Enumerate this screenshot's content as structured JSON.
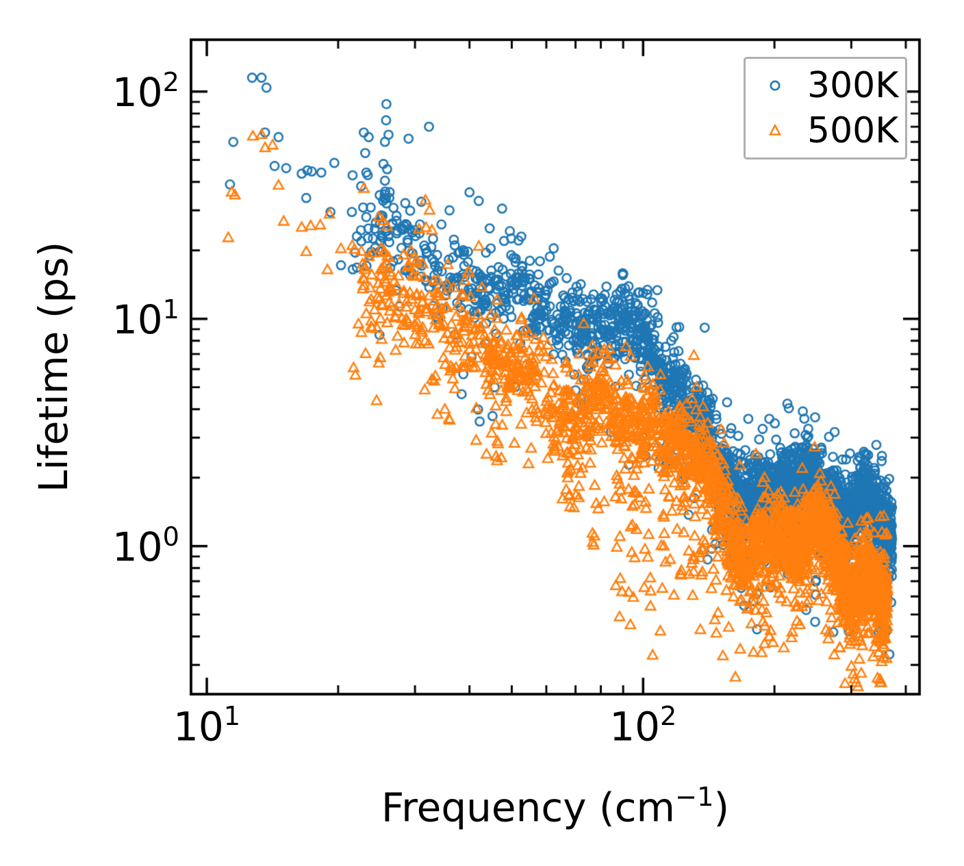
{
  "figure": {
    "ylabel_text": "Lifetime (ps)",
    "xlabel": {
      "pre": "Frequency (cm",
      "sup": "−1",
      "post": ")"
    },
    "x_tick_labels": [
      {
        "base": "10",
        "exp": "1"
      },
      {
        "base": "10",
        "exp": "2"
      }
    ],
    "y_tick_labels": [
      {
        "base": "10",
        "exp": "2"
      },
      {
        "base": "10",
        "exp": "1"
      },
      {
        "base": "10",
        "exp": "0"
      }
    ],
    "legend": {
      "entries": [
        {
          "label": "300K"
        },
        {
          "label": "500K"
        }
      ]
    },
    "background_color": "#ffffff",
    "axis_color": "#000000",
    "legend_border_color": "#b0b0b0"
  },
  "chart_data": {
    "type": "scatter",
    "title": "",
    "xlabel": "Frequency (cm⁻¹)",
    "ylabel": "Lifetime (ps)",
    "xscale": "log",
    "yscale": "log",
    "xlim": [
      9.2,
      430
    ],
    "ylim": [
      0.223,
      169
    ],
    "x_major_ticks": [
      10,
      100
    ],
    "y_major_ticks": [
      100,
      10,
      1
    ],
    "grid": false,
    "legend_position": "upper right",
    "series": [
      {
        "name": "300K",
        "color": "#1f77b4",
        "marker": "circle",
        "sparse_points": [
          [
            11.5,
            60
          ],
          [
            11.3,
            39
          ],
          [
            12.7,
            115
          ],
          [
            13.35,
            115
          ],
          [
            13.7,
            104
          ],
          [
            13.6,
            66
          ],
          [
            14.6,
            63
          ],
          [
            14.3,
            47
          ],
          [
            15.2,
            46
          ],
          [
            16.5,
            43.5
          ],
          [
            17.0,
            45
          ],
          [
            17.4,
            44.5
          ],
          [
            18.3,
            44
          ],
          [
            19.6,
            48.5
          ],
          [
            16.9,
            34
          ],
          [
            19.2,
            29.5
          ],
          [
            20.3,
            17.2
          ],
          [
            21.6,
            16.5
          ],
          [
            21.5,
            29.5
          ],
          [
            22.9,
            66
          ],
          [
            23.5,
            63
          ],
          [
            23.2,
            44
          ],
          [
            23.6,
            19
          ],
          [
            24.3,
            20.5
          ],
          [
            25.0,
            22
          ],
          [
            25.8,
            88
          ],
          [
            25.4,
            48
          ],
          [
            25.9,
            45.5
          ],
          [
            25.6,
            40.5
          ],
          [
            24.9,
            35
          ],
          [
            26.2,
            34
          ],
          [
            29.0,
            62
          ],
          [
            32.3,
            70
          ],
          [
            32.7,
            20.7
          ],
          [
            27.2,
            27
          ],
          [
            28.4,
            25.5
          ],
          [
            29.6,
            24
          ],
          [
            30.8,
            26
          ],
          [
            31.5,
            21
          ],
          [
            33.0,
            22.5
          ],
          [
            34.5,
            26
          ],
          [
            36.0,
            30
          ],
          [
            40.0,
            36
          ],
          [
            42.0,
            33
          ],
          [
            44.5,
            25
          ],
          [
            49.5,
            24.3
          ],
          [
            48.0,
            22
          ],
          [
            55.0,
            18
          ],
          [
            64.0,
            16.3
          ],
          [
            66.8,
            15.1
          ],
          [
            77.0,
            12.8
          ],
          [
            87.0,
            12.8
          ],
          [
            97.0,
            11.5
          ],
          [
            100,
            13
          ],
          [
            121,
            9.2
          ]
        ],
        "columns": [
          [
            25.6,
            26,
            88,
            7
          ],
          [
            23.1,
            17,
            67,
            5
          ],
          [
            118,
            2.4,
            4.0,
            5
          ],
          [
            154,
            0.95,
            2.2,
            8
          ],
          [
            162,
            0.8,
            1.8,
            6
          ],
          [
            170,
            0.85,
            1.6,
            5
          ],
          [
            216,
            1.4,
            2.0,
            6
          ]
        ],
        "band": {
          "n": 2600,
          "seed": 42,
          "f_min": 21.5,
          "f_max": 372,
          "anchors_f": [
            22,
            26,
            30,
            36,
            43,
            52,
            62,
            75,
            88,
            96,
            105,
            115,
            125,
            135,
            145,
            155,
            165,
            175,
            190,
            210,
            230,
            250,
            270,
            290,
            305,
            320,
            340,
            356,
            372
          ],
          "anchors_median": [
            27,
            23,
            19,
            15.5,
            13.5,
            12,
            11,
            10,
            9,
            7.6,
            6.3,
            5.3,
            4.5,
            3.8,
            3,
            2.2,
            1.65,
            1.4,
            1.6,
            1.85,
            2.05,
            1.95,
            1.75,
            1.5,
            1.55,
            1.65,
            1.4,
            1.15,
            1.0
          ],
          "anchors_halfwidth": [
            0.17,
            0.16,
            0.15,
            0.14,
            0.13,
            0.13,
            0.13,
            0.13,
            0.13,
            0.13,
            0.13,
            0.13,
            0.13,
            0.14,
            0.15,
            0.16,
            0.15,
            0.14,
            0.13,
            0.13,
            0.13,
            0.12,
            0.12,
            0.12,
            0.12,
            0.12,
            0.12,
            0.12,
            0.12
          ],
          "tail_frac": 0.09,
          "tail_depth": 0.5,
          "up_frac": 0.04,
          "up_depth": 0.3,
          "wiggle_amps": [
            0.045,
            0.03,
            0.025
          ],
          "wiggle_freqs": [
            21,
            47,
            104
          ]
        }
      },
      {
        "name": "500K",
        "color": "#ff7f0e",
        "marker": "triangle",
        "sparse_points": [
          [
            11.4,
            36
          ],
          [
            11.2,
            22.7
          ],
          [
            11.6,
            35
          ],
          [
            12.75,
            63.5
          ],
          [
            13.35,
            64.5
          ],
          [
            13.6,
            56.5
          ],
          [
            14.15,
            58
          ],
          [
            14.6,
            38.6
          ],
          [
            15.0,
            26.8
          ],
          [
            16.5,
            25.2
          ],
          [
            17.3,
            25.6
          ],
          [
            18.2,
            25.8
          ],
          [
            19.1,
            28.8
          ],
          [
            16.9,
            19.7
          ],
          [
            18.9,
            16.4
          ],
          [
            20.3,
            20.3
          ],
          [
            22.9,
            37.4
          ],
          [
            23.2,
            10.5
          ],
          [
            23.8,
            9.2
          ],
          [
            24.8,
            28
          ],
          [
            25.3,
            27
          ],
          [
            25.9,
            25.5
          ],
          [
            25.1,
            20.4
          ],
          [
            25.5,
            19.8
          ],
          [
            26.5,
            15.5
          ],
          [
            27.5,
            15.4
          ],
          [
            28.3,
            13.2
          ],
          [
            29.2,
            13
          ],
          [
            30.3,
            12.8
          ],
          [
            27.0,
            10.2
          ],
          [
            28.0,
            10
          ],
          [
            29.0,
            9.6
          ],
          [
            31.0,
            8.9
          ],
          [
            32.0,
            11
          ],
          [
            33.0,
            10.4
          ],
          [
            31.7,
            33.2
          ],
          [
            32.4,
            30
          ],
          [
            32.8,
            24.5
          ],
          [
            29.6,
            15.5
          ],
          [
            35.0,
            9.4
          ],
          [
            37.0,
            8.6
          ],
          [
            39.0,
            9.8
          ]
        ],
        "columns": [
          [
            25.4,
            9,
            29,
            8
          ],
          [
            47,
            2.2,
            4.0,
            5
          ],
          [
            67,
            1.45,
            3.0,
            6
          ],
          [
            71,
            1.3,
            2.8,
            6
          ],
          [
            78,
            0.9,
            2.2,
            6
          ],
          [
            88,
            0.45,
            2.0,
            8
          ],
          [
            95,
            0.33,
            1.8,
            8
          ],
          [
            103,
            0.3,
            1.5,
            8
          ],
          [
            112,
            0.35,
            1.6,
            7
          ],
          [
            120,
            0.45,
            1.8,
            6
          ],
          [
            130,
            0.55,
            1.6,
            5
          ],
          [
            138,
            0.32,
            1.2,
            7
          ],
          [
            146,
            0.38,
            1.3,
            6
          ],
          [
            193,
            0.25,
            0.9,
            7
          ],
          [
            199,
            0.28,
            1.0,
            6
          ],
          [
            254,
            0.9,
            1.6,
            6
          ],
          [
            302,
            0.25,
            0.8,
            9
          ],
          [
            308,
            0.3,
            0.9,
            6
          ]
        ],
        "band": {
          "n": 2700,
          "seed": 1337,
          "f_min": 21.5,
          "f_max": 363,
          "anchors_f": [
            22,
            26,
            30,
            36,
            43,
            50,
            56,
            62,
            68,
            75,
            82,
            90,
            100,
            110,
            120,
            130,
            140,
            150,
            160,
            172,
            185,
            200,
            215,
            230,
            250,
            270,
            285,
            300,
            315,
            330,
            345,
            360
          ],
          "anchors_median": [
            15,
            13,
            11,
            9,
            7.8,
            6.8,
            5.6,
            4.2,
            3.4,
            4,
            4.6,
            4.3,
            3.7,
            3.1,
            2.7,
            2.3,
            1.9,
            1.5,
            1.15,
            1.0,
            1.1,
            1.15,
            1.1,
            1.05,
            1.1,
            0.9,
            0.7,
            0.62,
            0.75,
            0.8,
            0.68,
            0.55
          ],
          "anchors_halfwidth": [
            0.19,
            0.18,
            0.17,
            0.16,
            0.15,
            0.15,
            0.16,
            0.19,
            0.21,
            0.17,
            0.15,
            0.14,
            0.14,
            0.14,
            0.14,
            0.15,
            0.15,
            0.16,
            0.16,
            0.15,
            0.14,
            0.14,
            0.14,
            0.14,
            0.13,
            0.14,
            0.15,
            0.15,
            0.14,
            0.13,
            0.14,
            0.15
          ],
          "tail_frac": 0.11,
          "tail_depth": 0.45,
          "up_frac": 0.05,
          "up_depth": 0.3,
          "wiggle_amps": [
            0.045,
            0.03,
            0.025
          ],
          "wiggle_freqs": [
            21,
            47,
            104
          ]
        }
      }
    ]
  }
}
